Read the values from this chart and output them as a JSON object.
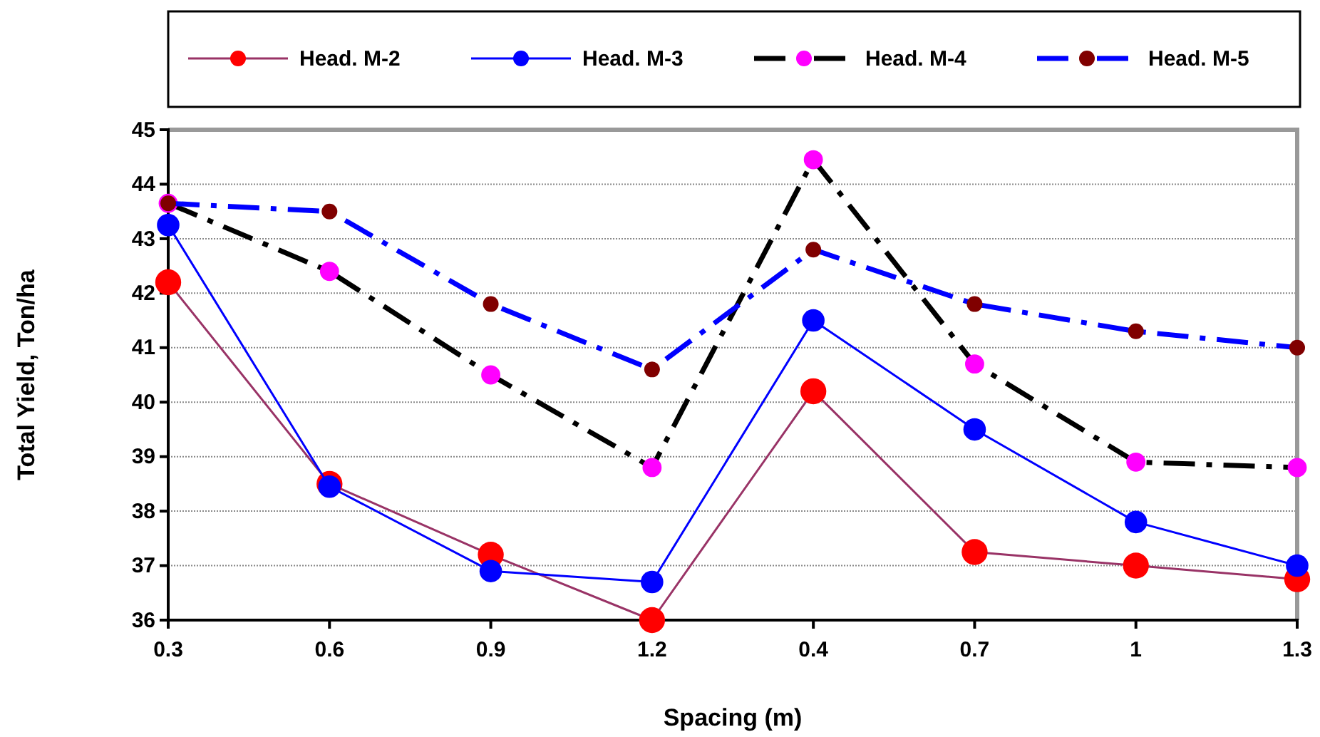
{
  "chart_data": {
    "type": "line",
    "xlabel": "Spacing (m)",
    "ylabel": "Total Yield, Ton/ha",
    "categories": [
      "0.3",
      "0.6",
      "0.9",
      "1.2",
      "0.4",
      "0.7",
      "1",
      "1.3"
    ],
    "series": [
      {
        "name": "Head. M-2",
        "color": "#993366",
        "colors": [
          "#ff0000",
          "#ff0000",
          "#ff0000",
          "#ff0000",
          "#ff0000",
          "#ff0000",
          "#ff0000",
          "#ff0000"
        ],
        "line_style": "solid",
        "values": [
          42.2,
          38.5,
          37.2,
          36.0,
          40.2,
          37.25,
          37.0,
          36.75
        ]
      },
      {
        "name": "Head. M-3",
        "color": "#0000ff",
        "colors": [
          "#0000ff",
          "#0000ff",
          "#0000ff",
          "#0000ff",
          "#0000ff",
          "#0000ff",
          "#0000ff",
          "#0000ff"
        ],
        "line_style": "solid",
        "values": [
          43.25,
          38.45,
          36.9,
          36.7,
          41.5,
          39.5,
          37.8,
          37.0
        ]
      },
      {
        "name": "Head. M-4",
        "color": "#000000",
        "colors": [
          "#ff00ff",
          "#ff00ff",
          "#ff00ff",
          "#ff00ff",
          "#ff00ff",
          "#ff00ff",
          "#ff00ff",
          "#ff00ff"
        ],
        "line_style": "dashed",
        "values": [
          43.65,
          42.4,
          40.5,
          38.8,
          44.45,
          40.7,
          38.9,
          38.8
        ]
      },
      {
        "name": "Head. M-5",
        "color": "#0000ff",
        "colors": [
          "#800000",
          "#800000",
          "#800000",
          "#800000",
          "#800000",
          "#800000",
          "#800000",
          "#800000"
        ],
        "line_style": "dashed",
        "values": [
          43.65,
          43.5,
          41.8,
          40.6,
          42.8,
          41.8,
          41.3,
          41.0
        ]
      }
    ],
    "ylim": [
      36,
      45
    ],
    "yticks": [
      36,
      37,
      38,
      39,
      40,
      41,
      42,
      43,
      44,
      45
    ],
    "grid": "y",
    "legend": "top",
    "marker": "circle"
  }
}
